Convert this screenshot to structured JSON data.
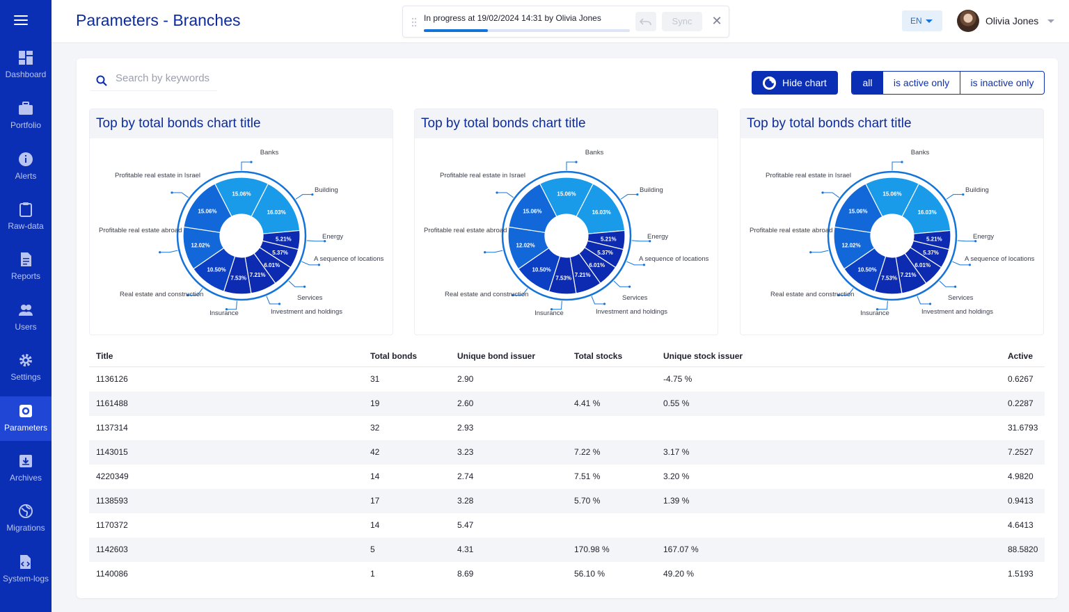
{
  "header": {
    "title": "Parameters - Branches",
    "progress": {
      "text": "In progress at 19/02/2024 14:31 by Olivia Jones",
      "percent": 31
    },
    "sync_label": "Sync",
    "language": "EN",
    "user_name": "Olivia Jones"
  },
  "sidebar": {
    "items": [
      {
        "label": "Dashboard",
        "icon": "dashboard-icon"
      },
      {
        "label": "Portfolio",
        "icon": "briefcase-icon"
      },
      {
        "label": "Alerts",
        "icon": "info-icon"
      },
      {
        "label": "Raw-data",
        "icon": "clipboard-icon"
      },
      {
        "label": "Reports",
        "icon": "document-icon"
      },
      {
        "label": "Users",
        "icon": "users-icon"
      },
      {
        "label": "Settings",
        "icon": "gear-icon"
      },
      {
        "label": "Parameters",
        "icon": "parameters-icon",
        "active": true
      },
      {
        "label": "Archives",
        "icon": "archive-icon"
      },
      {
        "label": "Migrations",
        "icon": "globe-icon"
      },
      {
        "label": "System-logs",
        "icon": "logs-icon"
      }
    ]
  },
  "toolbar": {
    "search_placeholder": "Search by keywords",
    "hide_chart_label": "Hide chart",
    "filters": [
      "all",
      "is active only",
      "is inactive only"
    ],
    "selected_filter": "all"
  },
  "colors": {
    "sidebar": "#0a2fb5",
    "accent": "#1473d9",
    "title": "#0c2b9c"
  },
  "chart_data": [
    {
      "type": "pie",
      "title": "Top by total bonds chart title",
      "categories": [
        "Banks",
        "Building",
        "Energy",
        "A sequence of locations",
        "Services",
        "Investment and holdings",
        "Insurance",
        "Real estate and construction",
        "Profitable real estate abroad",
        "Profitable real estate in Israel"
      ],
      "values": [
        15.06,
        16.03,
        5.21,
        5.37,
        6.01,
        7.21,
        7.53,
        10.5,
        12.02,
        15.06
      ],
      "legend": "callout-labels"
    },
    {
      "type": "pie",
      "title": "Top by total bonds chart title",
      "categories": [
        "Banks",
        "Building",
        "Energy",
        "A sequence of locations",
        "Services",
        "Investment and holdings",
        "Insurance",
        "Real estate and construction",
        "Profitable real estate abroad",
        "Profitable real estate in Israel"
      ],
      "values": [
        15.06,
        16.03,
        5.21,
        5.37,
        6.01,
        7.21,
        7.53,
        10.5,
        12.02,
        15.06
      ],
      "legend": "callout-labels"
    },
    {
      "type": "pie",
      "title": "Top by total bonds chart title",
      "categories": [
        "Banks",
        "Building",
        "Energy",
        "A sequence of locations",
        "Services",
        "Investment and holdings",
        "Insurance",
        "Real estate and construction",
        "Profitable real estate abroad",
        "Profitable real estate in Israel"
      ],
      "values": [
        15.06,
        16.03,
        5.21,
        5.37,
        6.01,
        7.21,
        7.53,
        10.5,
        12.02,
        15.06
      ],
      "legend": "callout-labels"
    }
  ],
  "table": {
    "columns": [
      "Title",
      "Total bonds",
      "Unique bond  issuer",
      "Total stocks",
      "Unique stock  issuer",
      "Active"
    ],
    "rows": [
      [
        "1136126",
        "31",
        "2.90",
        "",
        "-4.75 %",
        "0.6267"
      ],
      [
        "1161488",
        "19",
        "2.60",
        "4.41 %",
        "0.55 %",
        "0.2287"
      ],
      [
        "1137314",
        "32",
        "2.93",
        "",
        "",
        "31.6793"
      ],
      [
        "1143015",
        "42",
        "3.23",
        "7.22 %",
        "3.17 %",
        "7.2527"
      ],
      [
        "4220349",
        "14",
        "2.74",
        "7.51 %",
        "3.20 %",
        "4.9820"
      ],
      [
        "1138593",
        "17",
        "3.28",
        "5.70 %",
        "1.39 %",
        "0.9413"
      ],
      [
        "1170372",
        "14",
        "5.47",
        "",
        "",
        "4.6413"
      ],
      [
        "1142603",
        "5",
        "4.31",
        "170.98 %",
        "167.07 %",
        "88.5820"
      ],
      [
        "1140086",
        "1",
        "8.69",
        "56.10 %",
        "49.20 %",
        "1.5193"
      ]
    ]
  }
}
